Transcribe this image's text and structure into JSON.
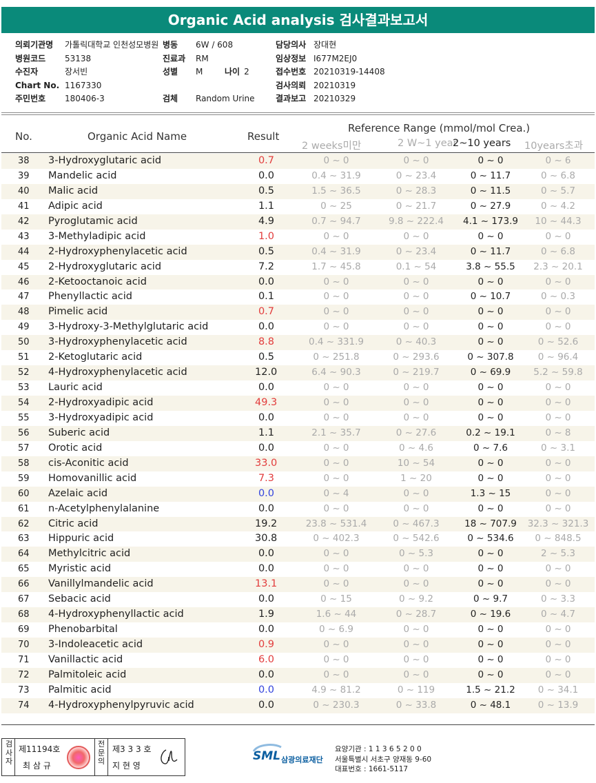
{
  "title": "Organic Acid analysis 검사결과보고서",
  "info": {
    "col1": [
      {
        "label": "의뢰기관명",
        "value": "가톨릭대학교 인천성모병원"
      },
      {
        "label": "병원코드",
        "value": "53138"
      },
      {
        "label": "수진자",
        "value": "장서빈"
      },
      {
        "label": "Chart No.",
        "value": "1167330"
      },
      {
        "label": "주민번호",
        "value": "180406-3"
      }
    ],
    "col2": [
      {
        "label": "병동",
        "value": "6W / 608"
      },
      {
        "label": "진료과",
        "value": "RM"
      },
      {
        "label": "성별",
        "value": "M"
      },
      {
        "label": "",
        "value": ""
      },
      {
        "label": "검체",
        "value": "Random Urine"
      }
    ],
    "age": {
      "label": "나이",
      "value": "2"
    },
    "col3": [
      {
        "label": "담당의사",
        "value": "장대현"
      },
      {
        "label": "임상정보",
        "value": "I677M2EJ0"
      },
      {
        "label": "접수번호",
        "value": "20210319-14408"
      },
      {
        "label": "검사의뢰",
        "value": "20210319"
      },
      {
        "label": "결과보고",
        "value": "20210329"
      }
    ]
  },
  "table": {
    "headers": {
      "no": "No.",
      "name": "Organic Acid Name",
      "result": "Result",
      "ref": "Reference Range (mmol/mol Crea.)",
      "sub": [
        "2 weeks미만",
        "2 W~1 year",
        "2~10 years",
        "10years초과"
      ]
    },
    "rows": [
      {
        "no": "38",
        "name": "3-Hydroxyglutaric acid",
        "result": "0.7",
        "flag": "high",
        "r": [
          "0 ~ 0",
          "0 ~ 0",
          "0 ~ 0",
          "0 ~ 6"
        ]
      },
      {
        "no": "39",
        "name": "Mandelic acid",
        "result": "0.0",
        "flag": "",
        "r": [
          "0.4 ~ 31.9",
          "0 ~ 23.4",
          "0 ~ 11.7",
          "0 ~ 6.8"
        ]
      },
      {
        "no": "40",
        "name": "Malic acid",
        "result": "0.5",
        "flag": "",
        "r": [
          "1.5 ~ 36.5",
          "0 ~ 28.3",
          "0 ~ 11.5",
          "0 ~ 5.7"
        ]
      },
      {
        "no": "41",
        "name": "Adipic acid",
        "result": "1.1",
        "flag": "",
        "r": [
          "0 ~ 25",
          "0 ~ 21.7",
          "0 ~ 27.9",
          "0 ~ 4.2"
        ]
      },
      {
        "no": "42",
        "name": "Pyroglutamic acid",
        "result": "4.9",
        "flag": "",
        "r": [
          "0.7 ~ 94.7",
          "9.8 ~ 222.4",
          "4.1 ~ 173.9",
          "10 ~ 44.3"
        ]
      },
      {
        "no": "43",
        "name": "3-Methyladipic acid",
        "result": "1.0",
        "flag": "high",
        "r": [
          "0 ~ 0",
          "0 ~ 0",
          "0 ~ 0",
          "0 ~ 0"
        ]
      },
      {
        "no": "44",
        "name": "2-Hydroxyphenylacetic acid",
        "result": "0.5",
        "flag": "",
        "r": [
          "0.4 ~ 31.9",
          "0 ~ 23.4",
          "0 ~ 11.7",
          "0 ~ 6.8"
        ]
      },
      {
        "no": "45",
        "name": "2-Hydroxyglutaric acid",
        "result": "7.2",
        "flag": "",
        "r": [
          "1.7 ~ 45.8",
          "0.1 ~ 54",
          "3.8 ~ 55.5",
          "2.3 ~ 20.1"
        ]
      },
      {
        "no": "46",
        "name": "2-Ketooctanoic acid",
        "result": "0.0",
        "flag": "",
        "r": [
          "0 ~ 0",
          "0 ~ 0",
          "0 ~ 0",
          "0 ~ 0"
        ]
      },
      {
        "no": "47",
        "name": "Phenyllactic acid",
        "result": "0.1",
        "flag": "",
        "r": [
          "0 ~ 0",
          "0 ~ 0",
          "0 ~ 10.7",
          "0 ~ 0.3"
        ]
      },
      {
        "no": "48",
        "name": "Pimelic acid",
        "result": "0.7",
        "flag": "high",
        "r": [
          "0 ~ 0",
          "0 ~ 0",
          "0 ~ 0",
          "0 ~ 0"
        ]
      },
      {
        "no": "49",
        "name": "3-Hydroxy-3-Methylglutaric acid",
        "result": "0.0",
        "flag": "",
        "r": [
          "0 ~ 0",
          "0 ~ 0",
          "0 ~ 0",
          "0 ~ 0"
        ]
      },
      {
        "no": "50",
        "name": "3-Hydroxyphenylacetic acid",
        "result": "8.8",
        "flag": "high",
        "r": [
          "0.4 ~ 331.9",
          "0 ~ 40.3",
          "0 ~ 0",
          "0 ~ 52.6"
        ]
      },
      {
        "no": "51",
        "name": "2-Ketoglutaric acid",
        "result": "0.5",
        "flag": "",
        "r": [
          "0 ~ 251.8",
          "0 ~ 293.6",
          "0 ~ 307.8",
          "0 ~ 96.4"
        ]
      },
      {
        "no": "52",
        "name": "4-Hydroxyphenylacetic acid",
        "result": "12.0",
        "flag": "",
        "r": [
          "6.4 ~ 90.3",
          "0 ~ 219.7",
          "0 ~ 69.9",
          "5.2 ~ 59.8"
        ]
      },
      {
        "no": "53",
        "name": "Lauric acid",
        "result": "0.0",
        "flag": "",
        "r": [
          "0 ~ 0",
          "0 ~ 0",
          "0 ~ 0",
          "0 ~ 0"
        ]
      },
      {
        "no": "54",
        "name": "2-Hydroxyadipic acid",
        "result": "49.3",
        "flag": "high",
        "r": [
          "0 ~ 0",
          "0 ~ 0",
          "0 ~ 0",
          "0 ~ 0"
        ]
      },
      {
        "no": "55",
        "name": "3-Hydroxyadipic acid",
        "result": "0.0",
        "flag": "",
        "r": [
          "0 ~ 0",
          "0 ~ 0",
          "0 ~ 0",
          "0 ~ 0"
        ]
      },
      {
        "no": "56",
        "name": "Suberic acid",
        "result": "1.1",
        "flag": "",
        "r": [
          "2.1 ~ 35.7",
          "0 ~ 27.6",
          "0.2 ~ 19.1",
          "0 ~ 8"
        ]
      },
      {
        "no": "57",
        "name": "Orotic acid",
        "result": "0.0",
        "flag": "",
        "r": [
          "0 ~ 0",
          "0 ~ 4.6",
          "0 ~ 7.6",
          "0 ~ 3.1"
        ]
      },
      {
        "no": "58",
        "name": "cis-Aconitic acid",
        "result": "33.0",
        "flag": "high",
        "r": [
          "0 ~ 0",
          "10 ~ 54",
          "0 ~ 0",
          "0 ~ 0"
        ]
      },
      {
        "no": "59",
        "name": "Homovanillic acid",
        "result": "7.3",
        "flag": "high",
        "r": [
          "0 ~ 0",
          "1 ~ 20",
          "0 ~ 0",
          "0 ~ 0"
        ]
      },
      {
        "no": "60",
        "name": "Azelaic acid",
        "result": "0.0",
        "flag": "low",
        "r": [
          "0 ~ 4",
          "0 ~ 0",
          "1.3 ~ 15",
          "0 ~ 0"
        ]
      },
      {
        "no": "61",
        "name": "n-Acetylphenylalanine",
        "result": "0.0",
        "flag": "",
        "r": [
          "0 ~ 0",
          "0 ~ 0",
          "0 ~ 0",
          "0 ~ 0"
        ]
      },
      {
        "no": "62",
        "name": "Citric acid",
        "result": "19.2",
        "flag": "",
        "r": [
          "23.8 ~ 531.4",
          "0 ~ 467.3",
          "18 ~ 707.9",
          "32.3 ~ 321.3"
        ]
      },
      {
        "no": "63",
        "name": "Hippuric acid",
        "result": "30.8",
        "flag": "",
        "r": [
          "0 ~ 402.3",
          "0 ~ 542.6",
          "0 ~ 534.6",
          "0 ~ 848.5"
        ]
      },
      {
        "no": "64",
        "name": "Methylcitric acid",
        "result": "0.0",
        "flag": "",
        "r": [
          "0 ~ 0",
          "0 ~ 5.3",
          "0 ~ 0",
          "2 ~ 5.3"
        ]
      },
      {
        "no": "65",
        "name": "Myristic acid",
        "result": "0.0",
        "flag": "",
        "r": [
          "0 ~ 0",
          "0 ~ 0",
          "0 ~ 0",
          "0 ~ 0"
        ]
      },
      {
        "no": "66",
        "name": "Vanillylmandelic acid",
        "result": "13.1",
        "flag": "high",
        "r": [
          "0 ~ 0",
          "0 ~ 0",
          "0 ~ 0",
          "0 ~ 0"
        ]
      },
      {
        "no": "67",
        "name": "Sebacic acid",
        "result": "0.0",
        "flag": "",
        "r": [
          "0 ~ 15",
          "0 ~ 9.2",
          "0 ~ 9.7",
          "0 ~ 3.3"
        ]
      },
      {
        "no": "68",
        "name": "4-Hydroxyphenyllactic acid",
        "result": "1.9",
        "flag": "",
        "r": [
          "1.6 ~ 44",
          "0 ~ 28.7",
          "0 ~ 19.6",
          "0 ~ 4.7"
        ]
      },
      {
        "no": "69",
        "name": "Phenobarbital",
        "result": "0.0",
        "flag": "",
        "r": [
          "0 ~ 6.9",
          "0 ~ 0",
          "0 ~ 0",
          "0 ~ 0"
        ]
      },
      {
        "no": "70",
        "name": "3-Indoleacetic acid",
        "result": "0.9",
        "flag": "high",
        "r": [
          "0 ~ 0",
          "0 ~ 0",
          "0 ~ 0",
          "0 ~ 0"
        ]
      },
      {
        "no": "71",
        "name": "Vanillactic acid",
        "result": "6.0",
        "flag": "high",
        "r": [
          "0 ~ 0",
          "0 ~ 0",
          "0 ~ 0",
          "0 ~ 0"
        ]
      },
      {
        "no": "72",
        "name": "Palmitoleic acid",
        "result": "0.0",
        "flag": "",
        "r": [
          "0 ~ 0",
          "0 ~ 0",
          "0 ~ 0",
          "0 ~ 0"
        ]
      },
      {
        "no": "73",
        "name": "Palmitic acid",
        "result": "0.0",
        "flag": "low",
        "r": [
          "4.9 ~ 81.2",
          "0 ~ 119",
          "1.5 ~ 21.2",
          "0 ~ 34.1"
        ]
      },
      {
        "no": "74",
        "name": "4-Hydroxyphenylpyruvic acid",
        "result": "0.0",
        "flag": "",
        "r": [
          "0 ~ 230.3",
          "0 ~ 33.8",
          "0 ~ 48.1",
          "0 ~ 13.9"
        ]
      }
    ]
  },
  "footer": {
    "label1": "검사자",
    "cert1": "제11194호",
    "name1": "최 삼 규",
    "label2": "전문의",
    "cert2": "제3 3 3 호",
    "name2": "지 현 영",
    "logo": "SML",
    "org": "삼광의료재단",
    "addr": [
      "요양기관 : 1 1 3 6 5 2 0 0",
      "서울특별시 서초구 양재동 9-60",
      "대표번호 : 1661-5117"
    ]
  },
  "colors": {
    "header": "#0a8a7a",
    "high": "#e23c3c",
    "low": "#3344dd",
    "stripe": "#f7f4e9"
  }
}
